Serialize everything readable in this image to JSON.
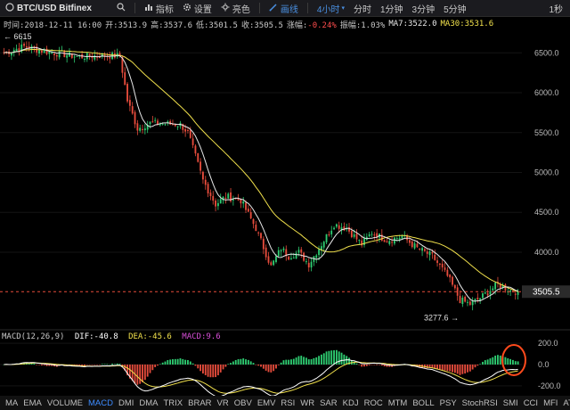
{
  "toolbar": {
    "symbol": "BTC/USD Bitfinex",
    "items": [
      {
        "label": "指标",
        "icon": "indicator-icon"
      },
      {
        "label": "设置",
        "icon": "gear-icon"
      },
      {
        "label": "亮色",
        "icon": "sun-icon"
      },
      {
        "label": "画线",
        "icon": "pen-icon"
      }
    ],
    "intervals": [
      "4小时",
      "分时",
      "1分钟",
      "3分钟",
      "5分钟"
    ],
    "active_interval": "4小时",
    "right_label": "1秒",
    "colors": {
      "active": "#4a90e2",
      "bg": "#1b1b1f"
    }
  },
  "infobar": {
    "time": "时间:2018-12-11 16:00",
    "open": "开:3513.9",
    "high": "高:3537.6",
    "low": "低:3501.5",
    "close": "收:3505.5",
    "change_label": "涨幅:",
    "change_value": "-0.24%",
    "amplitude": "振幅:1.03%",
    "ma7": "MA7:3522.0",
    "ma30": "MA30:3531.6"
  },
  "macd_label": {
    "params": "MACD(12,26,9)",
    "dif": "DIF:-40.8",
    "dea": "DEA:-45.6",
    "macd": "MACD:9.6"
  },
  "indicators": [
    "MA",
    "EMA",
    "VOLUME",
    "MACD",
    "DMI",
    "DMA",
    "TRIX",
    "BRAR",
    "VR",
    "OBV",
    "EMV",
    "RSI",
    "WR",
    "SAR",
    "KDJ",
    "ROC",
    "MTM",
    "BOLL",
    "PSY",
    "StochRSI",
    "SMI",
    "CCI",
    "MFI",
    "ATR"
  ],
  "active_indicator": "MACD",
  "chart_data": [
    {
      "type": "candlestick",
      "title": "",
      "y_ticks": [
        "6500.0",
        "6000.0",
        "5500.0",
        "5000.0",
        "4500.0",
        "4000.0"
      ],
      "ylim": [
        3050,
        6760
      ],
      "current_price_label": "3505.5",
      "high_label": "← 6615",
      "low_label": "3277.6 →",
      "anchors": [
        {
          "i": 0,
          "p": 6500
        },
        {
          "i": 8,
          "p": 6580
        },
        {
          "i": 16,
          "p": 6520
        },
        {
          "i": 30,
          "p": 6450
        },
        {
          "i": 40,
          "p": 6470
        },
        {
          "i": 46,
          "p": 6460
        },
        {
          "i": 49,
          "p": 5900
        },
        {
          "i": 53,
          "p": 5550
        },
        {
          "i": 58,
          "p": 5620
        },
        {
          "i": 70,
          "p": 5600
        },
        {
          "i": 73,
          "p": 5500
        },
        {
          "i": 79,
          "p": 4900
        },
        {
          "i": 84,
          "p": 4600
        },
        {
          "i": 88,
          "p": 4700
        },
        {
          "i": 94,
          "p": 4650
        },
        {
          "i": 100,
          "p": 4300
        },
        {
          "i": 106,
          "p": 3820
        },
        {
          "i": 110,
          "p": 4050
        },
        {
          "i": 113,
          "p": 3950
        },
        {
          "i": 117,
          "p": 4000
        },
        {
          "i": 121,
          "p": 3850
        },
        {
          "i": 126,
          "p": 4100
        },
        {
          "i": 131,
          "p": 4350
        },
        {
          "i": 136,
          "p": 4300
        },
        {
          "i": 142,
          "p": 4100
        },
        {
          "i": 146,
          "p": 4250
        },
        {
          "i": 152,
          "p": 4150
        },
        {
          "i": 158,
          "p": 4200
        },
        {
          "i": 164,
          "p": 4050
        },
        {
          "i": 170,
          "p": 3950
        },
        {
          "i": 176,
          "p": 3700
        },
        {
          "i": 181,
          "p": 3400
        },
        {
          "i": 185,
          "p": 3350
        },
        {
          "i": 190,
          "p": 3450
        },
        {
          "i": 196,
          "p": 3600
        },
        {
          "i": 201,
          "p": 3520
        },
        {
          "i": 204,
          "p": 3505
        }
      ],
      "colors": {
        "up": "#2ecc71",
        "down": "#e74c3c",
        "ma7": "#e8e8e8",
        "ma30": "#f0e04c",
        "price_line": "#e74c3c"
      }
    },
    {
      "type": "macd",
      "y_ticks": [
        "200.0",
        "0.0",
        "-200.0"
      ],
      "ylim": [
        -260,
        260
      ],
      "colors": {
        "dif": "#ffffff",
        "dea": "#f0e04c",
        "hist_up": "#2ecc71",
        "hist_down": "#e74c3c",
        "highlight": "#ff4a1c"
      }
    }
  ]
}
